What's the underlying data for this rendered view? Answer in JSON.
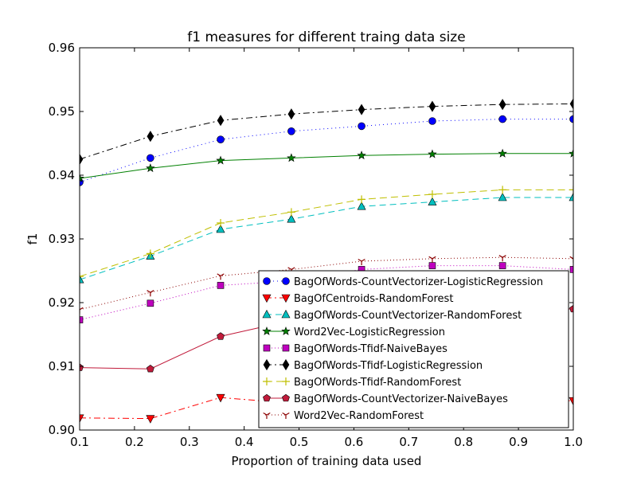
{
  "chart_data": {
    "type": "line",
    "title": "f1 measures for different traing data size",
    "xlabel": "Proportion of training data used",
    "ylabel": "f1",
    "xlim": [
      0.1,
      1.0
    ],
    "ylim": [
      0.9,
      0.96
    ],
    "grid": false,
    "legend_position": "lower-right",
    "x_ticks": [
      "0.1",
      "0.2",
      "0.3",
      "0.4",
      "0.5",
      "0.6",
      "0.7",
      "0.8",
      "0.9",
      "1.0"
    ],
    "y_ticks": [
      "0.90",
      "0.91",
      "0.92",
      "0.93",
      "0.94",
      "0.95",
      "0.96"
    ],
    "x": [
      0.1,
      0.229,
      0.357,
      0.486,
      0.614,
      0.743,
      0.871,
      1.0
    ],
    "series": [
      {
        "name": "BagOfWords-CountVectorizer-LogisticRegression",
        "color": "#0000ff",
        "marker": "circle",
        "dash": "1,4",
        "values": [
          0.9389,
          0.9427,
          0.9456,
          0.9469,
          0.9477,
          0.9485,
          0.9488,
          0.9488
        ]
      },
      {
        "name": "BagOfCentroids-RandomForest",
        "color": "#ff0000",
        "marker": "triangle-down",
        "dash": "8,4,2,4",
        "values": [
          0.9019,
          0.9018,
          0.9051,
          0.9042,
          0.9046,
          0.9049,
          0.9047,
          0.9046
        ]
      },
      {
        "name": "BagOfWords-CountVectorizer-RandomForest",
        "color": "#00bfbf",
        "marker": "triangle-up",
        "dash": "8,5",
        "values": [
          0.9236,
          0.9273,
          0.9315,
          0.9331,
          0.9351,
          0.9358,
          0.9365,
          0.9365
        ]
      },
      {
        "name": "Word2Vec-LogisticRegression",
        "color": "#008000",
        "marker": "star",
        "dash": "",
        "values": [
          0.9395,
          0.9411,
          0.9423,
          0.9427,
          0.9431,
          0.9433,
          0.9434,
          0.9434
        ]
      },
      {
        "name": "BagOfWords-Tfidf-NaiveBayes",
        "color": "#bf00bf",
        "marker": "square",
        "dash": "1,3",
        "values": [
          0.9173,
          0.9199,
          0.9227,
          0.9234,
          0.9252,
          0.9258,
          0.9258,
          0.9252
        ]
      },
      {
        "name": "BagOfWords-Tfidf-LogisticRegression",
        "color": "#000000",
        "marker": "diamond",
        "dash": "8,4,2,4",
        "values": [
          0.9425,
          0.9461,
          0.9486,
          0.9496,
          0.9503,
          0.9508,
          0.9511,
          0.9512
        ]
      },
      {
        "name": "BagOfWords-Tfidf-RandomForest",
        "color": "#bfbf00",
        "marker": "plus",
        "dash": "9,5",
        "values": [
          0.9241,
          0.9277,
          0.9325,
          0.9342,
          0.9362,
          0.937,
          0.9377,
          0.9377
        ]
      },
      {
        "name": "BagOfWords-CountVectorizer-NaiveBayes",
        "color": "#c11b3b",
        "marker": "pentagon",
        "dash": "",
        "values": [
          0.9098,
          0.9096,
          0.9147,
          0.9172,
          0.9185,
          0.9189,
          0.919,
          0.919
        ]
      },
      {
        "name": "Word2Vec-RandomForest",
        "color": "#8b0000",
        "marker": "tri-down",
        "dash": "1,3",
        "values": [
          0.9189,
          0.9216,
          0.9242,
          0.9252,
          0.9265,
          0.9269,
          0.9271,
          0.9269
        ]
      }
    ]
  }
}
